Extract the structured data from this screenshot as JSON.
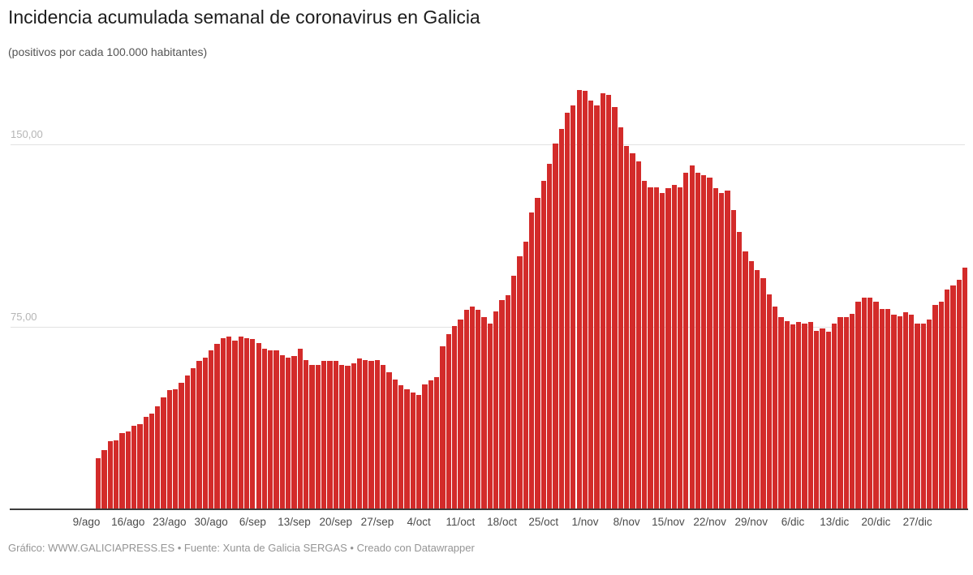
{
  "header": {
    "title": "Incidencia acumulada semanal de coronavirus en Galicia",
    "subtitle": "(positivos por cada 100.000 habitantes)"
  },
  "footer": {
    "text": "Gráfico: WWW.GALICIAPRESS.ES • Fuente: Xunta de Galicia SERGAS • Creado con Datawrapper"
  },
  "chart_data": {
    "type": "bar",
    "title": "Incidencia acumulada semanal de coronavirus en Galicia",
    "subtitle": "(positivos por cada 100.000 habitantes)",
    "ylabel": "positivos por cada 100.000 habitantes",
    "bar_color": "#d32b2a",
    "grid": "horizontal",
    "legend": "none",
    "ylim": [
      0,
      180
    ],
    "y_ticks": [
      {
        "value": 75,
        "label": "75,00"
      },
      {
        "value": 150,
        "label": "150,00"
      }
    ],
    "first_bar_date": "11/ago",
    "last_bar_date": "4/ene",
    "x_tick_labels": [
      "9/ago",
      "16/ago",
      "23/ago",
      "30/ago",
      "6/sep",
      "13/sep",
      "20/sep",
      "27/sep",
      "4/oct",
      "11/oct",
      "18/oct",
      "25/oct",
      "1/nov",
      "8/nov",
      "15/nov",
      "22/nov",
      "29/nov",
      "6/dic",
      "13/dic",
      "20/dic",
      "27/dic"
    ],
    "x_tick_bar_indices": [
      -2,
      5,
      12,
      19,
      26,
      33,
      40,
      47,
      54,
      61,
      68,
      75,
      82,
      89,
      96,
      103,
      110,
      117,
      124,
      131,
      138
    ],
    "values": [
      21,
      24.5,
      28,
      28.5,
      31.5,
      32,
      34.5,
      35,
      38,
      39.5,
      42.5,
      46,
      49,
      49.5,
      52,
      55,
      58,
      61,
      62.5,
      65.5,
      68,
      70.5,
      71,
      69.5,
      71,
      70.5,
      70,
      68.5,
      66,
      65.5,
      65.5,
      63.5,
      62.5,
      63,
      66,
      61.5,
      59.5,
      59.5,
      61,
      61,
      61,
      59.5,
      59,
      60,
      62,
      61.5,
      61,
      61.5,
      59.5,
      56.5,
      53.5,
      51,
      49.5,
      48,
      47,
      51.5,
      53,
      54.5,
      67,
      72,
      75.5,
      78,
      82,
      83.5,
      82,
      79,
      76.5,
      81.5,
      86,
      88,
      96,
      104,
      110,
      122,
      128,
      135,
      142,
      150.5,
      156.5,
      163,
      166,
      172.5,
      172,
      168,
      166,
      171,
      170.5,
      165.5,
      157,
      149.5,
      146.5,
      143,
      135,
      132.5,
      132.5,
      130,
      132,
      133.5,
      132.5,
      138.5,
      141.5,
      138.5,
      137.5,
      136.5,
      132,
      130,
      131,
      123,
      114,
      106,
      102,
      98.5,
      95,
      88.5,
      83.5,
      79,
      77.5,
      76,
      77,
      76.5,
      77,
      73.5,
      74.5,
      73,
      76.5,
      79,
      79,
      80.5,
      85.5,
      87,
      87,
      85.5,
      82.5,
      82.5,
      80,
      79.5,
      81,
      80,
      76.5,
      76.5,
      78,
      84,
      85.5,
      90.5,
      92,
      94.5,
      99.5
    ]
  }
}
